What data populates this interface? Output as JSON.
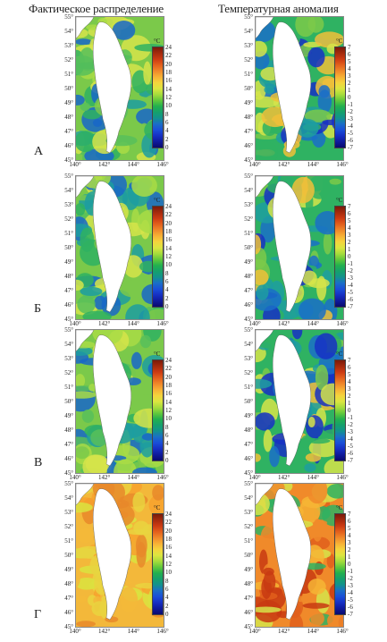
{
  "columns": [
    "Фактическое распределение",
    "Температурная аномалия"
  ],
  "rows": [
    "А",
    "Б",
    "В",
    "Г"
  ],
  "lat_labels": [
    "55°",
    "54°",
    "53°",
    "52°",
    "51°",
    "50°",
    "49°",
    "48°",
    "47°",
    "46°",
    "45°"
  ],
  "lon_labels": [
    "140°",
    "142°",
    "144°",
    "146°"
  ],
  "unit": "°C",
  "colorbar_actual": {
    "ticks": [
      "24",
      "22",
      "20",
      "18",
      "16",
      "14",
      "12",
      "10",
      "8",
      "6",
      "4",
      "2",
      "0"
    ],
    "colors": [
      "#7a1a0a",
      "#a52a0d",
      "#cc3a12",
      "#e3601c",
      "#f0882a",
      "#f7b135",
      "#f5d43c",
      "#dbe640",
      "#a6dc3c",
      "#62c83c",
      "#22b04e",
      "#15a06c",
      "#12928e",
      "#1a6ec8",
      "#1a4fd8",
      "#1630c4",
      "#0f1a9c",
      "#0a0a6e"
    ]
  },
  "colorbar_anomaly": {
    "ticks": [
      "7",
      "6",
      "5",
      "4",
      "3",
      "2",
      "1",
      "0",
      "-1",
      "-2",
      "-3",
      "-4",
      "-5",
      "-6",
      "-7"
    ],
    "colors": [
      "#7a1a0a",
      "#a52a0d",
      "#cc3a12",
      "#e3601c",
      "#f0882a",
      "#f7b135",
      "#f5d43c",
      "#dbe640",
      "#a6dc3c",
      "#62c83c",
      "#22b04e",
      "#15a06c",
      "#12928e",
      "#1a6ec8",
      "#1a4fd8",
      "#1630c4",
      "#0f1a9c",
      "#0a0a6e"
    ]
  }
}
